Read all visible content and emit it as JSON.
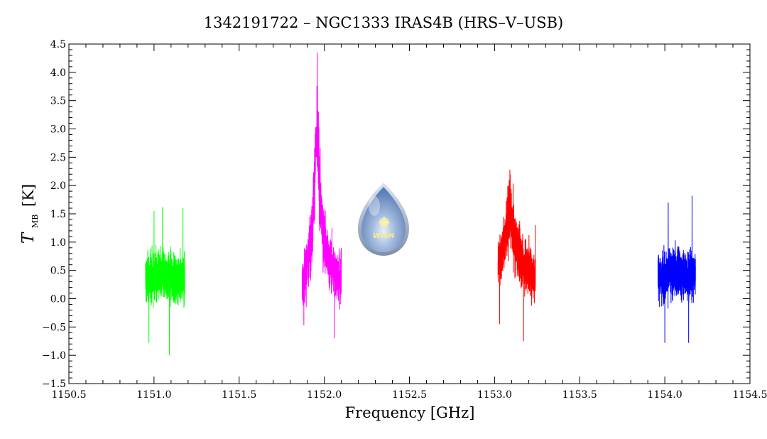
{
  "chart_data": {
    "type": "line",
    "title": "1342191722 – NGC1333 IRAS4B (HRS–V–USB)",
    "xlabel": "Frequency [GHz]",
    "ylabel_main": "T",
    "ylabel_sub": "MB",
    "ylabel_unit": "[K]",
    "xlim": [
      1150.5,
      1154.5
    ],
    "ylim": [
      -1.5,
      4.5
    ],
    "x_ticks": [
      "1150.5",
      "1151.0",
      "1151.5",
      "1152.0",
      "1152.5",
      "1153.0",
      "1153.5",
      "1154.0",
      "1154.5"
    ],
    "y_ticks": [
      "−1.5",
      "−1.0",
      "−0.5",
      "0.0",
      "0.5",
      "1.0",
      "1.5",
      "2.0",
      "2.5",
      "3.0",
      "3.5",
      "4.0",
      "4.5"
    ],
    "grid": false,
    "logo_text": "WISH",
    "series": [
      {
        "color": "#00ff00",
        "x_range": [
          1150.95,
          1151.18
        ],
        "min": -1.0,
        "max": 1.6,
        "peak_envelope": [
          [
            1150.95,
            0.35
          ],
          [
            1151.06,
            0.4
          ],
          [
            1151.18,
            0.35
          ]
        ],
        "sample_extremes": [
          [
            1150.97,
            -0.78
          ],
          [
            1151.0,
            1.55
          ],
          [
            1151.05,
            1.62
          ],
          [
            1151.09,
            -1.0
          ],
          [
            1151.17,
            1.6
          ]
        ]
      },
      {
        "color": "#ff00ff",
        "x_range": [
          1151.87,
          1152.1
        ],
        "min": -0.7,
        "max": 4.35,
        "peak_envelope": [
          [
            1151.87,
            0.3
          ],
          [
            1151.9,
            0.6
          ],
          [
            1151.93,
            1.2
          ],
          [
            1151.95,
            2.7
          ],
          [
            1151.96,
            2.8
          ],
          [
            1151.98,
            1.5
          ],
          [
            1152.02,
            0.7
          ],
          [
            1152.1,
            0.3
          ]
        ],
        "sample_extremes": [
          [
            1151.88,
            -0.47
          ],
          [
            1151.96,
            4.35
          ],
          [
            1152.06,
            -0.7
          ],
          [
            1152.1,
            0.9
          ]
        ]
      },
      {
        "color": "#ff0000",
        "x_range": [
          1153.02,
          1153.24
        ],
        "min": -0.75,
        "max": 2.28,
        "peak_envelope": [
          [
            1153.02,
            0.6
          ],
          [
            1153.06,
            1.0
          ],
          [
            1153.09,
            1.55
          ],
          [
            1153.12,
            1.0
          ],
          [
            1153.17,
            0.6
          ],
          [
            1153.24,
            0.4
          ]
        ],
        "sample_extremes": [
          [
            1153.03,
            -0.45
          ],
          [
            1153.09,
            2.28
          ],
          [
            1153.17,
            -0.75
          ],
          [
            1153.24,
            1.3
          ]
        ]
      },
      {
        "color": "#0000ff",
        "x_range": [
          1153.96,
          1154.18
        ],
        "min": -0.78,
        "max": 1.82,
        "peak_envelope": [
          [
            1153.96,
            0.4
          ],
          [
            1154.07,
            0.45
          ],
          [
            1154.18,
            0.4
          ]
        ],
        "sample_extremes": [
          [
            1154.0,
            -0.78
          ],
          [
            1154.02,
            1.7
          ],
          [
            1154.14,
            -0.78
          ],
          [
            1154.16,
            1.82
          ]
        ]
      }
    ]
  }
}
